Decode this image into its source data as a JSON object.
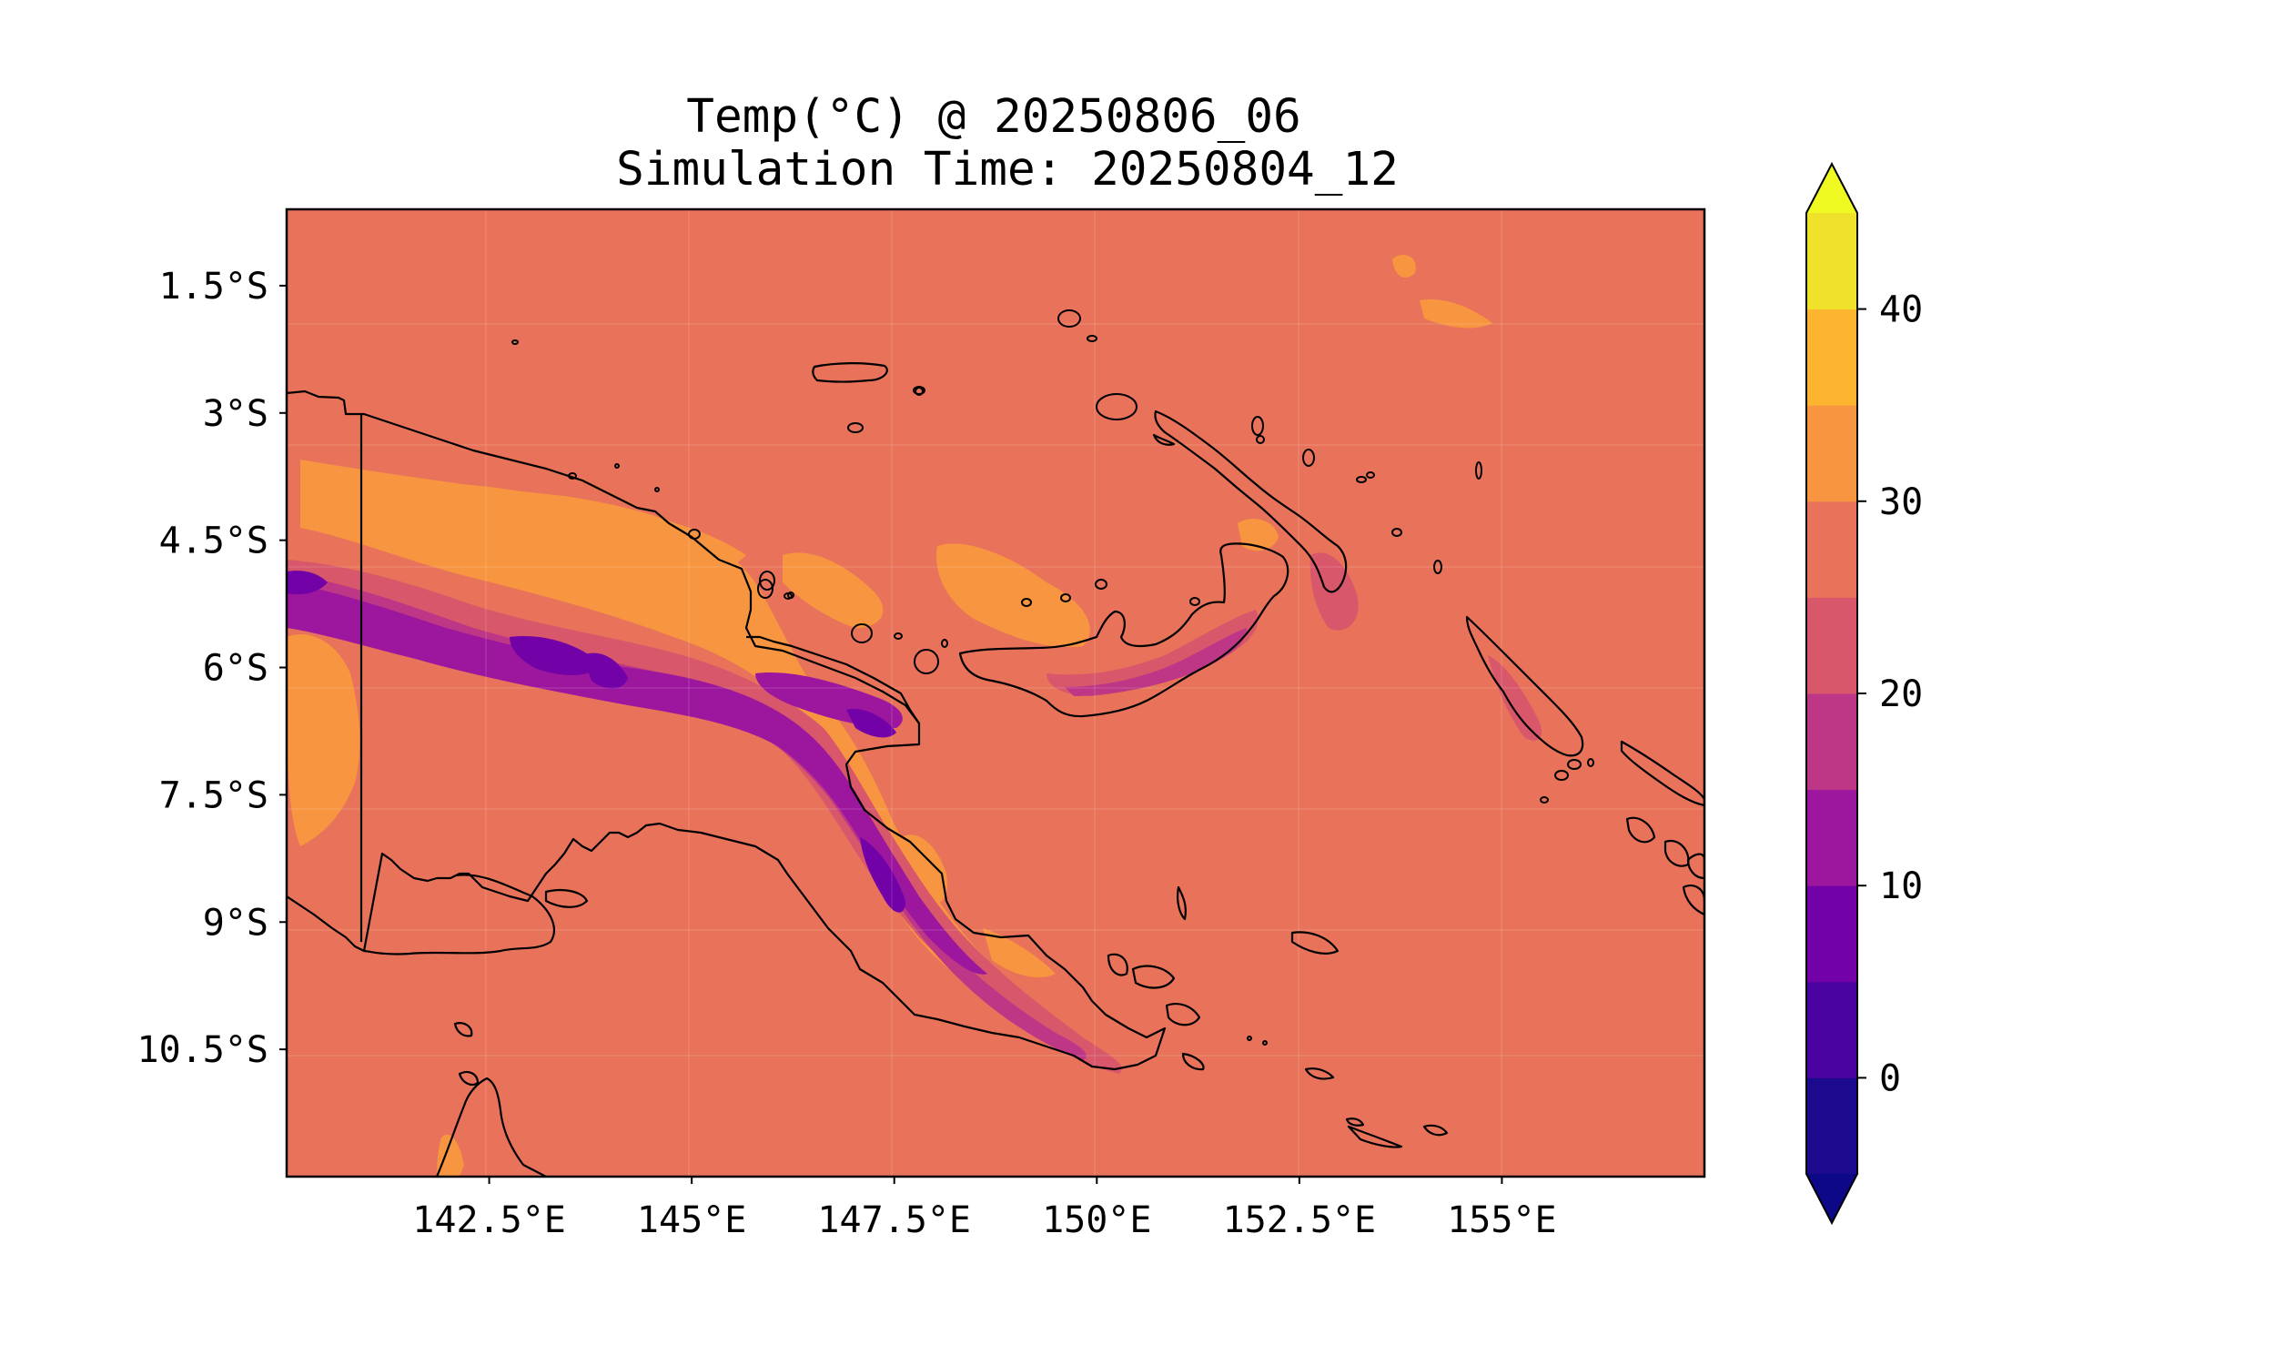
{
  "title_line1": "Temp(°C) @ 20250806_06",
  "title_line2": "Simulation Time: 20250804_12",
  "map": {
    "lon_range": [
      140.0,
      157.5
    ],
    "lat_range": [
      -12.0,
      -0.6
    ],
    "x_ticks": [
      {
        "lon": 142.5,
        "label": "142.5°E"
      },
      {
        "lon": 145.0,
        "label": "145°E"
      },
      {
        "lon": 147.5,
        "label": "147.5°E"
      },
      {
        "lon": 150.0,
        "label": "150°E"
      },
      {
        "lon": 152.5,
        "label": "152.5°E"
      },
      {
        "lon": 155.0,
        "label": "155°E"
      }
    ],
    "y_ticks": [
      {
        "lat": -1.5,
        "label": "1.5°S"
      },
      {
        "lat": -3.0,
        "label": "3°S"
      },
      {
        "lat": -4.5,
        "label": "4.5°S"
      },
      {
        "lat": -6.0,
        "label": "6°S"
      },
      {
        "lat": -7.5,
        "label": "7.5°S"
      },
      {
        "lat": -9.0,
        "label": "9°S"
      },
      {
        "lat": -10.5,
        "label": "10.5°S"
      }
    ],
    "background_color": "#e8735a"
  },
  "colorbar": {
    "levels": [
      -5,
      0,
      5,
      10,
      15,
      20,
      25,
      30,
      35,
      40,
      45
    ],
    "colors": [
      "#1c0a8e",
      "#4a03a0",
      "#7201a8",
      "#9c179e",
      "#bd3786",
      "#d8576b",
      "#e8735a",
      "#f89540",
      "#fdb42f",
      "#f0e12a"
    ],
    "under_color": "#0d0887",
    "over_color": "#f0f921",
    "ticks": [
      {
        "value": 0,
        "label": "0"
      },
      {
        "value": 10,
        "label": "10"
      },
      {
        "value": 20,
        "label": "20"
      },
      {
        "value": 30,
        "label": "30"
      },
      {
        "value": 40,
        "label": "40"
      }
    ]
  }
}
